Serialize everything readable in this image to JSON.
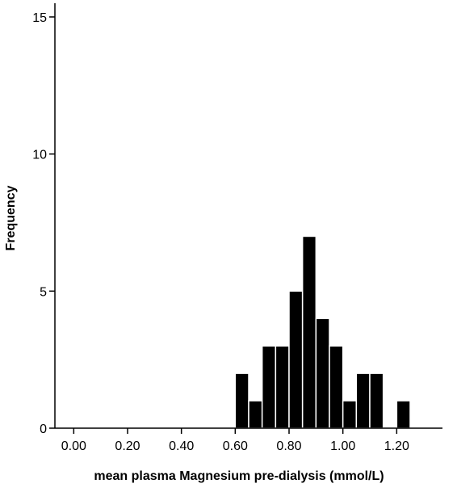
{
  "chart_data": {
    "type": "bar",
    "chart_kind": "histogram",
    "title": "",
    "xlabel": "mean plasma Magnesium pre-dialysis (mmol/L)",
    "ylabel": "Frequency",
    "xlim": [
      -0.07,
      1.37
    ],
    "ylim": [
      0,
      15.5
    ],
    "x_ticks": [
      0.0,
      0.2,
      0.4,
      0.6,
      0.8,
      1.0,
      1.2
    ],
    "x_tick_labels": [
      "0.00",
      "0.20",
      "0.40",
      "0.60",
      "0.80",
      "1.00",
      "1.20"
    ],
    "y_ticks": [
      0,
      5,
      10,
      15
    ],
    "y_tick_labels": [
      "0",
      "5",
      "10",
      "15"
    ],
    "bin_width": 0.05,
    "bins": [
      {
        "x_start": 0.6,
        "x_end": 0.65,
        "count": 2
      },
      {
        "x_start": 0.65,
        "x_end": 0.7,
        "count": 1
      },
      {
        "x_start": 0.7,
        "x_end": 0.75,
        "count": 3
      },
      {
        "x_start": 0.75,
        "x_end": 0.8,
        "count": 3
      },
      {
        "x_start": 0.8,
        "x_end": 0.85,
        "count": 5
      },
      {
        "x_start": 0.85,
        "x_end": 0.9,
        "count": 7
      },
      {
        "x_start": 0.9,
        "x_end": 0.95,
        "count": 4
      },
      {
        "x_start": 0.95,
        "x_end": 1.0,
        "count": 3
      },
      {
        "x_start": 1.0,
        "x_end": 1.05,
        "count": 1
      },
      {
        "x_start": 1.05,
        "x_end": 1.1,
        "count": 2
      },
      {
        "x_start": 1.1,
        "x_end": 1.15,
        "count": 2
      },
      {
        "x_start": 1.15,
        "x_end": 1.2,
        "count": 0
      },
      {
        "x_start": 1.2,
        "x_end": 1.25,
        "count": 1
      }
    ],
    "grid": false,
    "legend": "none",
    "colors": {
      "bar_fill": "#000000",
      "bar_edge": "#ffffff",
      "axis": "#000000"
    }
  }
}
